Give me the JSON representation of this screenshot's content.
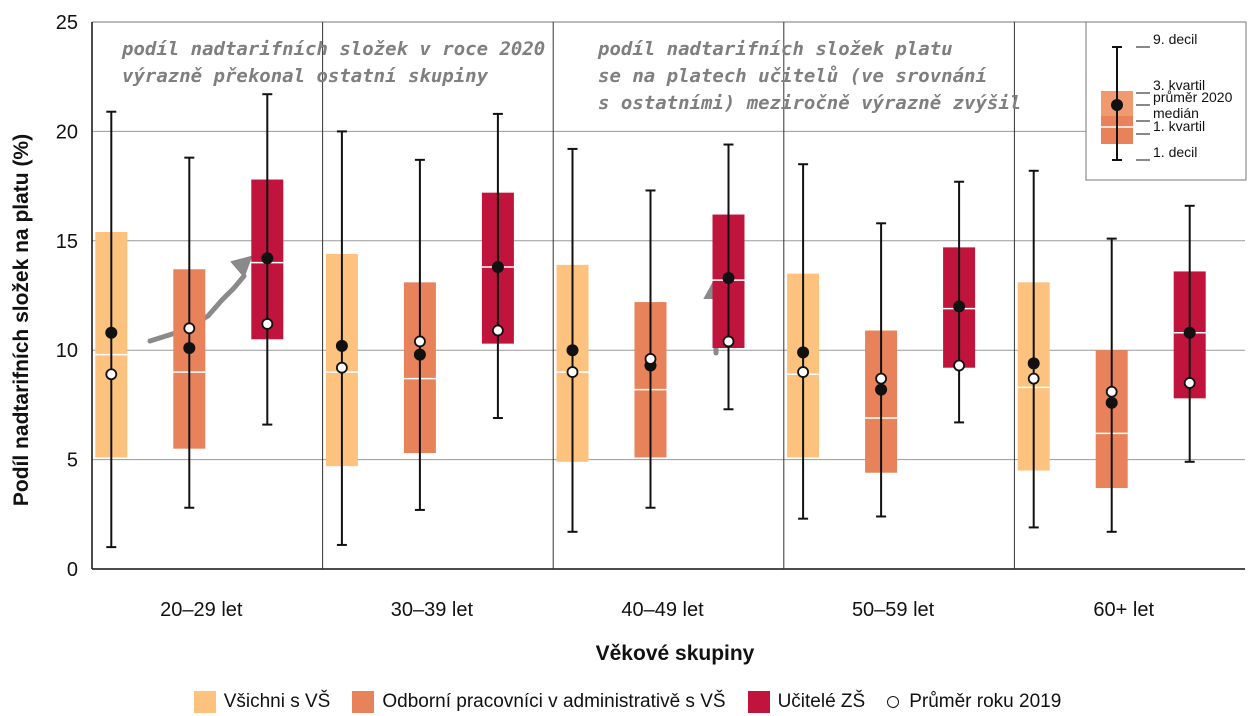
{
  "chart_data": {
    "type": "boxplot",
    "title": "",
    "xlabel": "Věkové skupiny",
    "ylabel": "Podíl nadtarifních složek na platu (%)",
    "ylim": [
      0,
      25
    ],
    "yticks": [
      0,
      5,
      10,
      15,
      20,
      25
    ],
    "grid": true,
    "categories": [
      "20–29 let",
      "30–39 let",
      "40–49 let",
      "50–59 let",
      "60+ let"
    ],
    "series": [
      {
        "name": "Všichni s VŠ",
        "color": "#fcc27e",
        "decile1": [
          1.0,
          1.1,
          1.7,
          2.3,
          1.9
        ],
        "q1": [
          5.1,
          4.7,
          4.9,
          5.1,
          4.5
        ],
        "median": [
          9.8,
          9.0,
          9.0,
          8.9,
          8.3
        ],
        "q3": [
          15.4,
          14.4,
          13.9,
          13.5,
          13.1
        ],
        "decile9": [
          20.9,
          20.0,
          19.2,
          18.5,
          18.2
        ],
        "mean_2020": [
          10.8,
          10.2,
          10.0,
          9.9,
          9.4
        ],
        "mean_2019": [
          8.9,
          9.2,
          9.0,
          9.0,
          8.7
        ]
      },
      {
        "name": "Odborní pracovníci v administrativě s VŠ",
        "color": "#e8825a",
        "decile1": [
          2.8,
          2.7,
          2.8,
          2.4,
          1.7
        ],
        "q1": [
          5.5,
          5.3,
          5.1,
          4.4,
          3.7
        ],
        "median": [
          9.0,
          8.7,
          8.2,
          6.9,
          6.2
        ],
        "q3": [
          13.7,
          13.1,
          12.2,
          10.9,
          10.0
        ],
        "decile9": [
          18.8,
          18.7,
          17.3,
          15.8,
          15.1
        ],
        "mean_2020": [
          10.1,
          9.8,
          9.3,
          8.2,
          7.6
        ],
        "mean_2019": [
          11.0,
          10.4,
          9.6,
          8.7,
          8.1
        ]
      },
      {
        "name": "Učitelé ZŠ",
        "color": "#c0143c",
        "decile1": [
          6.6,
          6.9,
          7.3,
          6.7,
          4.9
        ],
        "q1": [
          10.5,
          10.3,
          10.1,
          9.2,
          7.8
        ],
        "median": [
          14.0,
          13.8,
          13.2,
          11.9,
          10.8
        ],
        "q3": [
          17.8,
          17.2,
          16.2,
          14.7,
          13.6
        ],
        "decile9": [
          21.7,
          20.8,
          19.4,
          17.7,
          16.6
        ],
        "mean_2020": [
          14.2,
          13.8,
          13.3,
          12.0,
          10.8
        ],
        "mean_2019": [
          11.2,
          10.9,
          10.4,
          9.3,
          8.5
        ]
      }
    ],
    "annotations": [
      "podíl nadtarifních složek v roce 2020",
      "výrazně překonal ostatní skupiny",
      "podíl nadtarifních složek platu",
      "se na platech učitelů (ve srovnání",
      "s ostatními) meziročně výrazně zvýšil"
    ],
    "inset_legend": {
      "decile9": "9. decil",
      "q3": "3. kvartil",
      "mean2020": "průměr 2020",
      "median": "medián",
      "q1": "1. kvartil",
      "decile1": "1. decil"
    },
    "legend": {
      "position": "bottom",
      "entries": [
        {
          "label": "Všichni s VŠ",
          "color": "#fcc27e"
        },
        {
          "label": "Odborní pracovníci v administrativě s VŠ",
          "color": "#e8825a"
        },
        {
          "label": "Učitelé ZŠ",
          "color": "#c0143c"
        },
        {
          "label": "Průměr roku 2019",
          "marker": "open-circle"
        }
      ]
    }
  }
}
